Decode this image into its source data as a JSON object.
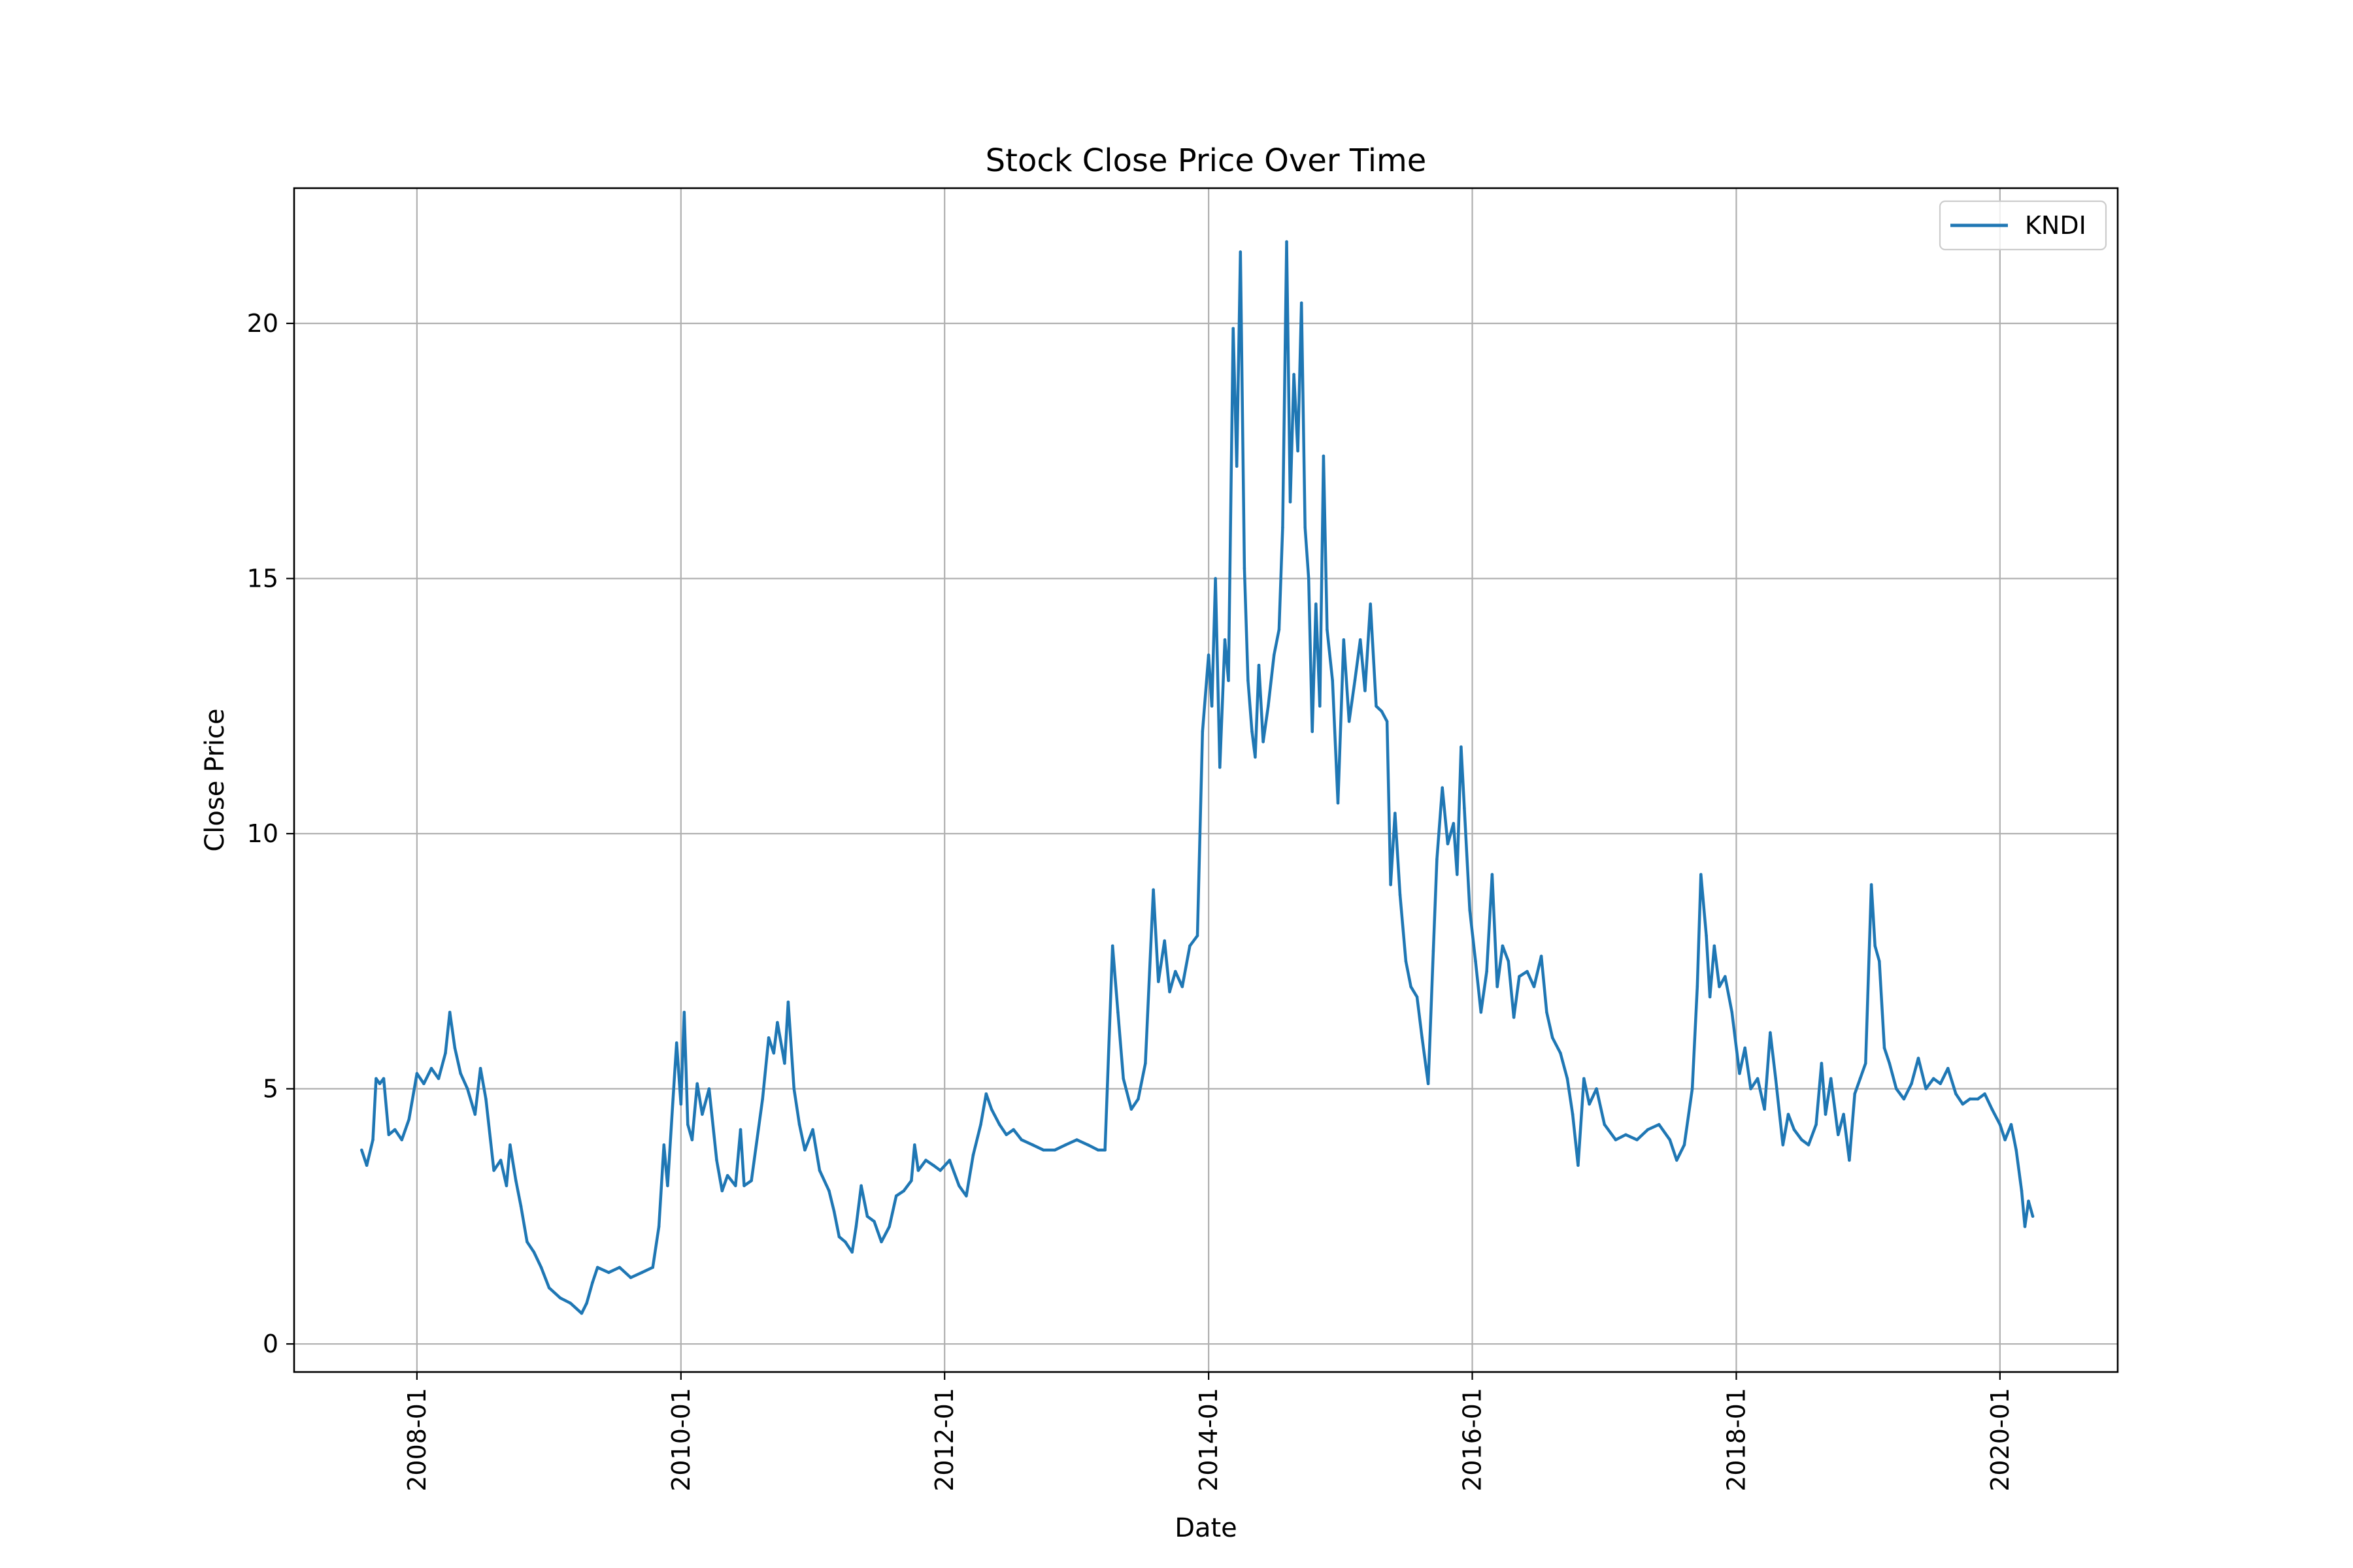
{
  "chart_data": {
    "type": "line",
    "title": "Stock Close Price Over Time",
    "xlabel": "Date",
    "ylabel": "Close Price",
    "x_ticks": [
      "2008-01",
      "2010-01",
      "2012-01",
      "2014-01",
      "2016-01",
      "2018-01",
      "2020-01"
    ],
    "y_ticks": [
      "0",
      "5",
      "10",
      "15",
      "20"
    ],
    "xlim": [
      "2007-01-26",
      "2020-11-22"
    ],
    "ylim": [
      -0.55,
      22.65
    ],
    "grid": true,
    "legend_position": "upper right",
    "series": [
      {
        "name": "KNDI",
        "color": "#1f77b4",
        "points": [
          [
            "2007-08-01",
            3.8
          ],
          [
            "2007-08-15",
            3.5
          ],
          [
            "2007-09-01",
            4.0
          ],
          [
            "2007-09-10",
            5.2
          ],
          [
            "2007-09-20",
            5.1
          ],
          [
            "2007-10-01",
            5.2
          ],
          [
            "2007-10-15",
            4.1
          ],
          [
            "2007-11-01",
            4.2
          ],
          [
            "2007-11-20",
            4.0
          ],
          [
            "2007-12-10",
            4.4
          ],
          [
            "2008-01-01",
            5.3
          ],
          [
            "2008-01-20",
            5.1
          ],
          [
            "2008-02-10",
            5.4
          ],
          [
            "2008-03-01",
            5.2
          ],
          [
            "2008-03-20",
            5.7
          ],
          [
            "2008-04-01",
            6.5
          ],
          [
            "2008-04-15",
            5.8
          ],
          [
            "2008-05-01",
            5.3
          ],
          [
            "2008-05-20",
            5.0
          ],
          [
            "2008-06-10",
            4.5
          ],
          [
            "2008-06-25",
            5.4
          ],
          [
            "2008-07-10",
            4.8
          ],
          [
            "2008-08-01",
            3.4
          ],
          [
            "2008-08-20",
            3.6
          ],
          [
            "2008-09-05",
            3.1
          ],
          [
            "2008-09-15",
            3.9
          ],
          [
            "2008-10-01",
            3.2
          ],
          [
            "2008-10-15",
            2.7
          ],
          [
            "2008-11-01",
            2.0
          ],
          [
            "2008-11-20",
            1.8
          ],
          [
            "2008-12-10",
            1.5
          ],
          [
            "2009-01-01",
            1.1
          ],
          [
            "2009-02-01",
            0.9
          ],
          [
            "2009-03-01",
            0.8
          ],
          [
            "2009-04-01",
            0.6
          ],
          [
            "2009-04-15",
            0.8
          ],
          [
            "2009-05-01",
            1.2
          ],
          [
            "2009-05-15",
            1.5
          ],
          [
            "2009-06-15",
            1.4
          ],
          [
            "2009-07-15",
            1.5
          ],
          [
            "2009-08-15",
            1.3
          ],
          [
            "2009-09-15",
            1.4
          ],
          [
            "2009-10-15",
            1.5
          ],
          [
            "2009-11-01",
            2.3
          ],
          [
            "2009-11-15",
            3.9
          ],
          [
            "2009-11-25",
            3.1
          ],
          [
            "2009-12-10",
            4.8
          ],
          [
            "2009-12-20",
            5.9
          ],
          [
            "2010-01-01",
            4.7
          ],
          [
            "2010-01-10",
            6.5
          ],
          [
            "2010-01-20",
            4.3
          ],
          [
            "2010-02-01",
            4.0
          ],
          [
            "2010-02-15",
            5.1
          ],
          [
            "2010-03-01",
            4.5
          ],
          [
            "2010-03-20",
            5.0
          ],
          [
            "2010-04-10",
            3.6
          ],
          [
            "2010-04-25",
            3.0
          ],
          [
            "2010-05-10",
            3.3
          ],
          [
            "2010-06-01",
            3.1
          ],
          [
            "2010-06-15",
            4.2
          ],
          [
            "2010-06-25",
            3.1
          ],
          [
            "2010-07-15",
            3.2
          ],
          [
            "2010-08-15",
            4.8
          ],
          [
            "2010-09-01",
            6.0
          ],
          [
            "2010-09-15",
            5.7
          ],
          [
            "2010-09-25",
            6.3
          ],
          [
            "2010-10-15",
            5.5
          ],
          [
            "2010-10-25",
            6.7
          ],
          [
            "2010-11-10",
            5.0
          ],
          [
            "2010-11-25",
            4.3
          ],
          [
            "2010-12-10",
            3.8
          ],
          [
            "2011-01-01",
            4.2
          ],
          [
            "2011-01-20",
            3.4
          ],
          [
            "2011-02-15",
            3.0
          ],
          [
            "2011-03-01",
            2.6
          ],
          [
            "2011-03-15",
            2.1
          ],
          [
            "2011-04-01",
            2.0
          ],
          [
            "2011-04-20",
            1.8
          ],
          [
            "2011-05-01",
            2.3
          ],
          [
            "2011-05-15",
            3.1
          ],
          [
            "2011-06-01",
            2.5
          ],
          [
            "2011-06-20",
            2.4
          ],
          [
            "2011-07-10",
            2.0
          ],
          [
            "2011-08-01",
            2.3
          ],
          [
            "2011-08-20",
            2.9
          ],
          [
            "2011-09-10",
            3.0
          ],
          [
            "2011-10-01",
            3.2
          ],
          [
            "2011-10-10",
            3.9
          ],
          [
            "2011-10-20",
            3.4
          ],
          [
            "2011-11-10",
            3.6
          ],
          [
            "2011-12-01",
            3.5
          ],
          [
            "2011-12-20",
            3.4
          ],
          [
            "2012-01-15",
            3.6
          ],
          [
            "2012-02-10",
            3.1
          ],
          [
            "2012-03-01",
            2.9
          ],
          [
            "2012-03-20",
            3.7
          ],
          [
            "2012-04-10",
            4.3
          ],
          [
            "2012-04-25",
            4.9
          ],
          [
            "2012-05-10",
            4.6
          ],
          [
            "2012-06-01",
            4.3
          ],
          [
            "2012-06-20",
            4.1
          ],
          [
            "2012-07-10",
            4.2
          ],
          [
            "2012-08-01",
            4.0
          ],
          [
            "2012-09-01",
            3.9
          ],
          [
            "2012-10-01",
            3.8
          ],
          [
            "2012-11-01",
            3.8
          ],
          [
            "2012-12-01",
            3.9
          ],
          [
            "2013-01-01",
            4.0
          ],
          [
            "2013-02-01",
            3.9
          ],
          [
            "2013-03-01",
            3.8
          ],
          [
            "2013-03-20",
            3.8
          ],
          [
            "2013-04-10",
            7.8
          ],
          [
            "2013-04-25",
            6.5
          ],
          [
            "2013-05-10",
            5.2
          ],
          [
            "2013-06-01",
            4.6
          ],
          [
            "2013-06-20",
            4.8
          ],
          [
            "2013-07-10",
            5.5
          ],
          [
            "2013-08-01",
            8.9
          ],
          [
            "2013-08-15",
            7.1
          ],
          [
            "2013-09-01",
            7.9
          ],
          [
            "2013-09-15",
            6.9
          ],
          [
            "2013-10-01",
            7.3
          ],
          [
            "2013-10-20",
            7.0
          ],
          [
            "2013-11-10",
            7.8
          ],
          [
            "2013-12-01",
            8.0
          ],
          [
            "2013-12-15",
            12.0
          ],
          [
            "2014-01-01",
            13.5
          ],
          [
            "2014-01-10",
            12.5
          ],
          [
            "2014-01-20",
            15.0
          ],
          [
            "2014-02-01",
            11.3
          ],
          [
            "2014-02-15",
            13.8
          ],
          [
            "2014-02-25",
            13.0
          ],
          [
            "2014-03-10",
            19.9
          ],
          [
            "2014-03-20",
            17.2
          ],
          [
            "2014-03-30",
            21.4
          ],
          [
            "2014-04-10",
            15.2
          ],
          [
            "2014-04-20",
            13.0
          ],
          [
            "2014-05-01",
            12.0
          ],
          [
            "2014-05-10",
            11.5
          ],
          [
            "2014-05-20",
            13.3
          ],
          [
            "2014-06-01",
            11.8
          ],
          [
            "2014-06-15",
            12.5
          ],
          [
            "2014-07-01",
            13.5
          ],
          [
            "2014-07-15",
            14.0
          ],
          [
            "2014-07-25",
            16.0
          ],
          [
            "2014-08-05",
            21.6
          ],
          [
            "2014-08-15",
            16.5
          ],
          [
            "2014-08-25",
            19.0
          ],
          [
            "2014-09-05",
            17.5
          ],
          [
            "2014-09-15",
            20.4
          ],
          [
            "2014-09-25",
            16.0
          ],
          [
            "2014-10-05",
            15.0
          ],
          [
            "2014-10-15",
            12.0
          ],
          [
            "2014-10-25",
            14.5
          ],
          [
            "2014-11-05",
            12.5
          ],
          [
            "2014-11-15",
            17.4
          ],
          [
            "2014-11-25",
            14.0
          ],
          [
            "2014-12-10",
            13.0
          ],
          [
            "2014-12-25",
            10.6
          ],
          [
            "2015-01-10",
            13.8
          ],
          [
            "2015-01-25",
            12.2
          ],
          [
            "2015-02-10",
            13.0
          ],
          [
            "2015-02-25",
            13.8
          ],
          [
            "2015-03-10",
            12.8
          ],
          [
            "2015-03-25",
            14.5
          ],
          [
            "2015-04-10",
            12.5
          ],
          [
            "2015-04-25",
            12.4
          ],
          [
            "2015-05-10",
            12.2
          ],
          [
            "2015-05-20",
            9.0
          ],
          [
            "2015-06-01",
            10.4
          ],
          [
            "2015-06-15",
            8.8
          ],
          [
            "2015-07-01",
            7.5
          ],
          [
            "2015-07-15",
            7.0
          ],
          [
            "2015-08-01",
            6.8
          ],
          [
            "2015-08-15",
            6.0
          ],
          [
            "2015-09-01",
            5.1
          ],
          [
            "2015-09-15",
            7.7
          ],
          [
            "2015-09-25",
            9.5
          ],
          [
            "2015-10-10",
            10.9
          ],
          [
            "2015-10-25",
            9.8
          ],
          [
            "2015-11-10",
            10.2
          ],
          [
            "2015-11-20",
            9.2
          ],
          [
            "2015-12-01",
            11.7
          ],
          [
            "2015-12-10",
            10.5
          ],
          [
            "2015-12-25",
            8.5
          ],
          [
            "2016-01-10",
            7.5
          ],
          [
            "2016-01-25",
            6.5
          ],
          [
            "2016-02-10",
            7.3
          ],
          [
            "2016-02-25",
            9.2
          ],
          [
            "2016-03-10",
            7.0
          ],
          [
            "2016-03-25",
            7.8
          ],
          [
            "2016-04-10",
            7.5
          ],
          [
            "2016-04-25",
            6.4
          ],
          [
            "2016-05-10",
            7.2
          ],
          [
            "2016-06-01",
            7.3
          ],
          [
            "2016-06-20",
            7.0
          ],
          [
            "2016-07-10",
            7.6
          ],
          [
            "2016-07-25",
            6.5
          ],
          [
            "2016-08-10",
            6.0
          ],
          [
            "2016-09-01",
            5.7
          ],
          [
            "2016-09-20",
            5.2
          ],
          [
            "2016-10-05",
            4.5
          ],
          [
            "2016-10-20",
            3.5
          ],
          [
            "2016-11-05",
            5.2
          ],
          [
            "2016-11-20",
            4.7
          ],
          [
            "2016-12-10",
            5.0
          ],
          [
            "2017-01-01",
            4.3
          ],
          [
            "2017-02-01",
            4.0
          ],
          [
            "2017-03-01",
            4.1
          ],
          [
            "2017-04-01",
            4.0
          ],
          [
            "2017-05-01",
            4.2
          ],
          [
            "2017-06-01",
            4.3
          ],
          [
            "2017-07-01",
            4.0
          ],
          [
            "2017-07-20",
            3.6
          ],
          [
            "2017-08-10",
            3.9
          ],
          [
            "2017-09-01",
            5.0
          ],
          [
            "2017-09-15",
            7.0
          ],
          [
            "2017-09-25",
            9.2
          ],
          [
            "2017-10-10",
            8.0
          ],
          [
            "2017-10-20",
            6.8
          ],
          [
            "2017-11-01",
            7.8
          ],
          [
            "2017-11-15",
            7.0
          ],
          [
            "2017-12-01",
            7.2
          ],
          [
            "2017-12-20",
            6.5
          ],
          [
            "2018-01-10",
            5.3
          ],
          [
            "2018-01-25",
            5.8
          ],
          [
            "2018-02-10",
            5.0
          ],
          [
            "2018-03-01",
            5.2
          ],
          [
            "2018-03-20",
            4.6
          ],
          [
            "2018-04-05",
            6.1
          ],
          [
            "2018-04-20",
            5.2
          ],
          [
            "2018-05-10",
            3.9
          ],
          [
            "2018-05-25",
            4.5
          ],
          [
            "2018-06-10",
            4.2
          ],
          [
            "2018-07-01",
            4.0
          ],
          [
            "2018-07-20",
            3.9
          ],
          [
            "2018-08-10",
            4.3
          ],
          [
            "2018-08-25",
            5.5
          ],
          [
            "2018-09-05",
            4.5
          ],
          [
            "2018-09-20",
            5.2
          ],
          [
            "2018-10-10",
            4.1
          ],
          [
            "2018-10-25",
            4.5
          ],
          [
            "2018-11-10",
            3.6
          ],
          [
            "2018-11-25",
            4.9
          ],
          [
            "2018-12-10",
            5.2
          ],
          [
            "2018-12-25",
            5.5
          ],
          [
            "2019-01-10",
            9.0
          ],
          [
            "2019-01-20",
            7.8
          ],
          [
            "2019-02-01",
            7.5
          ],
          [
            "2019-02-15",
            5.8
          ],
          [
            "2019-03-01",
            5.5
          ],
          [
            "2019-03-20",
            5.0
          ],
          [
            "2019-04-10",
            4.8
          ],
          [
            "2019-05-01",
            5.1
          ],
          [
            "2019-05-20",
            5.6
          ],
          [
            "2019-06-10",
            5.0
          ],
          [
            "2019-07-01",
            5.2
          ],
          [
            "2019-07-20",
            5.1
          ],
          [
            "2019-08-10",
            5.4
          ],
          [
            "2019-09-01",
            4.9
          ],
          [
            "2019-09-20",
            4.7
          ],
          [
            "2019-10-10",
            4.8
          ],
          [
            "2019-11-01",
            4.8
          ],
          [
            "2019-11-20",
            4.9
          ],
          [
            "2019-12-10",
            4.6
          ],
          [
            "2020-01-01",
            4.3
          ],
          [
            "2020-01-15",
            4.0
          ],
          [
            "2020-02-01",
            4.3
          ],
          [
            "2020-02-15",
            3.8
          ],
          [
            "2020-03-01",
            3.0
          ],
          [
            "2020-03-10",
            2.3
          ],
          [
            "2020-03-20",
            2.8
          ],
          [
            "2020-04-01",
            2.5
          ]
        ]
      }
    ]
  }
}
